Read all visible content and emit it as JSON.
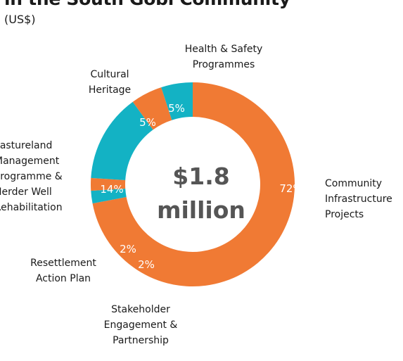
{
  "title": "in the South Gobi Community",
  "unit": "(US$)",
  "chart_data": {
    "type": "pie",
    "center_label": [
      "$1.8",
      "million"
    ],
    "slices": [
      {
        "name": "Community Infrastructure Projects",
        "lines": [
          "Community",
          "Infrastructure",
          "Projects"
        ],
        "value": 72,
        "label": "72%",
        "color": "#F07A34"
      },
      {
        "name": "Stakeholder Engagement & Partnership",
        "lines": [
          "Stakeholder",
          "Engagement &",
          "Partnership"
        ],
        "value": 2,
        "label": "2%",
        "color": "#13B2C4"
      },
      {
        "name": "Resettlement Action Plan",
        "lines": [
          "Resettlement",
          "Action Plan"
        ],
        "value": 2,
        "label": "2%",
        "color": "#F07A34"
      },
      {
        "name": "Pastureland Management Programme & Herder Well Rehabilitation",
        "lines": [
          "Pastureland",
          "Management",
          "Programme &",
          "Herder Well",
          "Rehabilitation"
        ],
        "value": 14,
        "label": "14%",
        "color": "#13B2C4"
      },
      {
        "name": "Cultural Heritage",
        "lines": [
          "Cultural",
          "Heritage"
        ],
        "value": 5,
        "label": "5%",
        "color": "#F07A34"
      },
      {
        "name": "Health & Safety Programmes",
        "lines": [
          "Health & Safety",
          "Programmes"
        ],
        "value": 5,
        "label": "5%",
        "color": "#13B2C4"
      }
    ]
  }
}
